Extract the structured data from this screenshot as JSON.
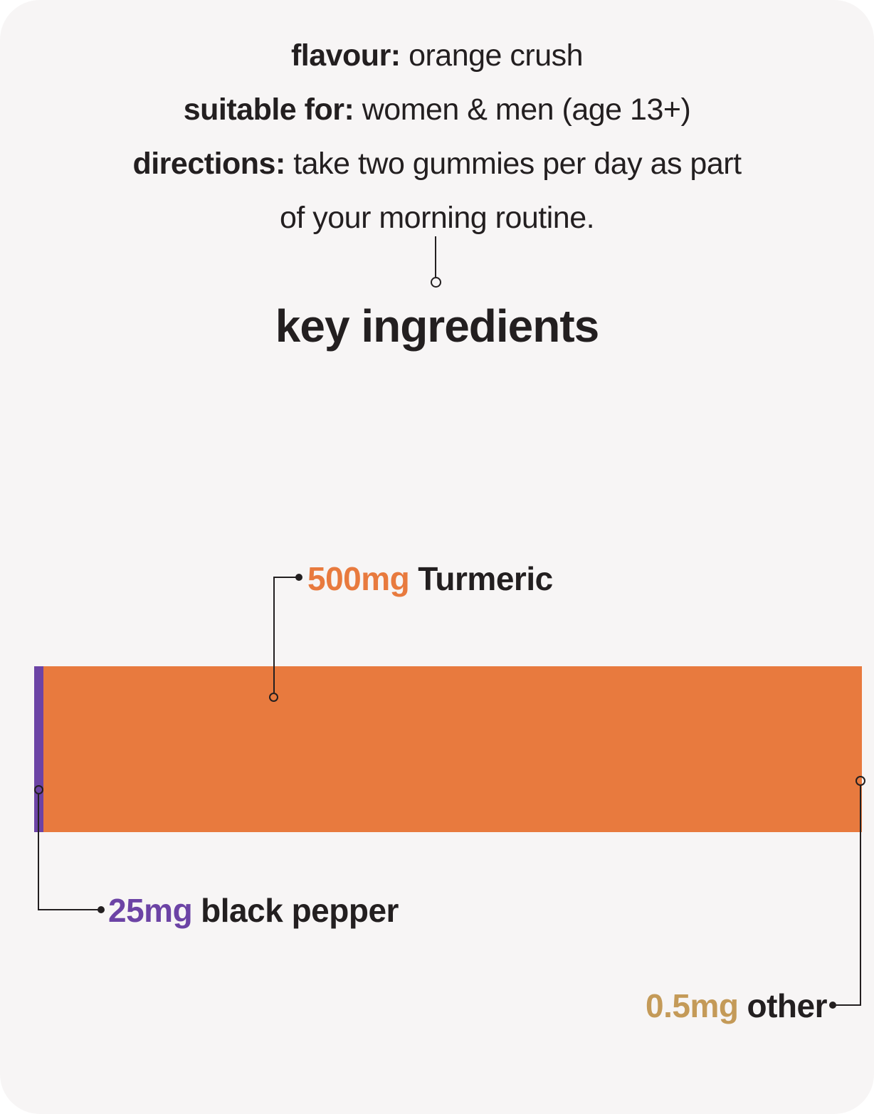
{
  "theme": {
    "page-bg": "#ffffff",
    "card-bg": "#f7f5f5",
    "text-dark": "#231f20",
    "turmeric": "#e87a3e",
    "black-pepper": "#6c43a5",
    "other": "#c49a58",
    "line": "#231f20"
  },
  "info": {
    "lines": [
      {
        "label": "flavour:",
        "text": " orange crush"
      },
      {
        "label": "suitable for:",
        "text": " women & men (age 13+)"
      },
      {
        "label": "directions:",
        "text": " take two gummies per day as part"
      },
      {
        "label": "",
        "text": "of your morning routine."
      }
    ]
  },
  "heading": "key ingredients",
  "chart_data": {
    "type": "bar",
    "orientation": "horizontal-stacked",
    "title": "key ingredients",
    "unit": "mg",
    "total_mg": 525.5,
    "axis": "none",
    "grid": false,
    "legend_position": "callout-labels",
    "segments": [
      {
        "name": "Turmeric",
        "value_label": "500mg",
        "amount_mg": 500,
        "color": "#e87a3e"
      },
      {
        "name": "black pepper",
        "value_label": "25mg",
        "amount_mg": 25,
        "color": "#6c43a5"
      },
      {
        "name": "other",
        "value_label": "0.5mg",
        "amount_mg": 0.5,
        "color": "#c49a58"
      }
    ]
  }
}
